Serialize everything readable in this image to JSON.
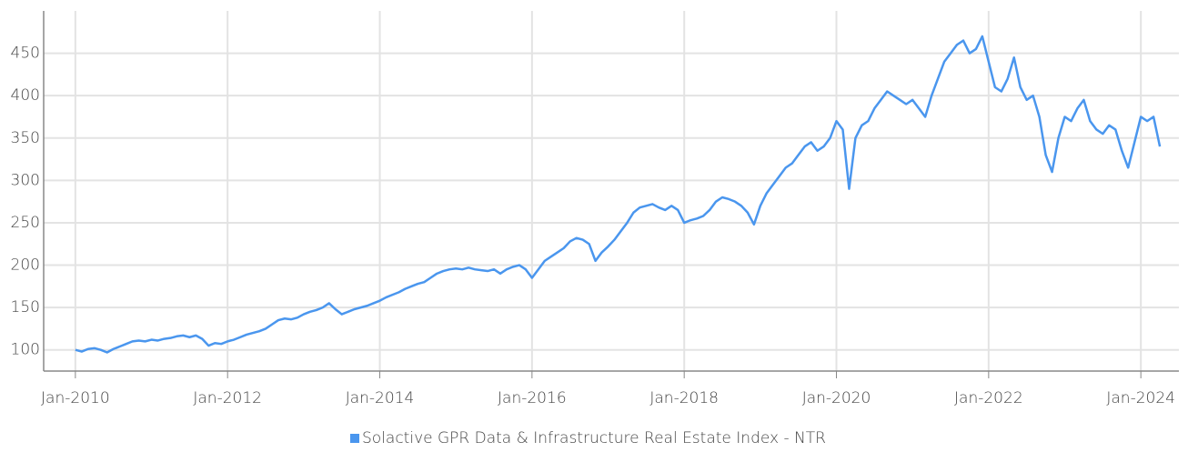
{
  "chart_data": {
    "type": "line",
    "x": [
      "2010-01",
      "2010-02",
      "2010-03",
      "2010-04",
      "2010-05",
      "2010-06",
      "2010-07",
      "2010-08",
      "2010-09",
      "2010-10",
      "2010-11",
      "2010-12",
      "2011-01",
      "2011-02",
      "2011-03",
      "2011-04",
      "2011-05",
      "2011-06",
      "2011-07",
      "2011-08",
      "2011-09",
      "2011-10",
      "2011-11",
      "2011-12",
      "2012-01",
      "2012-02",
      "2012-03",
      "2012-04",
      "2012-05",
      "2012-06",
      "2012-07",
      "2012-08",
      "2012-09",
      "2012-10",
      "2012-11",
      "2012-12",
      "2013-01",
      "2013-02",
      "2013-03",
      "2013-04",
      "2013-05",
      "2013-06",
      "2013-07",
      "2013-08",
      "2013-09",
      "2013-10",
      "2013-11",
      "2013-12",
      "2014-01",
      "2014-02",
      "2014-03",
      "2014-04",
      "2014-05",
      "2014-06",
      "2014-07",
      "2014-08",
      "2014-09",
      "2014-10",
      "2014-11",
      "2014-12",
      "2015-01",
      "2015-02",
      "2015-03",
      "2015-04",
      "2015-05",
      "2015-06",
      "2015-07",
      "2015-08",
      "2015-09",
      "2015-10",
      "2015-11",
      "2015-12",
      "2016-01",
      "2016-02",
      "2016-03",
      "2016-04",
      "2016-05",
      "2016-06",
      "2016-07",
      "2016-08",
      "2016-09",
      "2016-10",
      "2016-11",
      "2016-12",
      "2017-01",
      "2017-02",
      "2017-03",
      "2017-04",
      "2017-05",
      "2017-06",
      "2017-07",
      "2017-08",
      "2017-09",
      "2017-10",
      "2017-11",
      "2017-12",
      "2018-01",
      "2018-02",
      "2018-03",
      "2018-04",
      "2018-05",
      "2018-06",
      "2018-07",
      "2018-08",
      "2018-09",
      "2018-10",
      "2018-11",
      "2018-12",
      "2019-01",
      "2019-02",
      "2019-03",
      "2019-04",
      "2019-05",
      "2019-06",
      "2019-07",
      "2019-08",
      "2019-09",
      "2019-10",
      "2019-11",
      "2019-12",
      "2020-01",
      "2020-02",
      "2020-03",
      "2020-04",
      "2020-05",
      "2020-06",
      "2020-07",
      "2020-08",
      "2020-09",
      "2020-10",
      "2020-11",
      "2020-12",
      "2021-01",
      "2021-02",
      "2021-03",
      "2021-04",
      "2021-05",
      "2021-06",
      "2021-07",
      "2021-08",
      "2021-09",
      "2021-10",
      "2021-11",
      "2021-12",
      "2022-01",
      "2022-02",
      "2022-03",
      "2022-04",
      "2022-05",
      "2022-06",
      "2022-07",
      "2022-08",
      "2022-09",
      "2022-10",
      "2022-11",
      "2022-12",
      "2023-01",
      "2023-02",
      "2023-03",
      "2023-04",
      "2023-05",
      "2023-06",
      "2023-07",
      "2023-08",
      "2023-09",
      "2023-10",
      "2023-11",
      "2023-12",
      "2024-01",
      "2024-02",
      "2024-03",
      "2024-04"
    ],
    "series": [
      {
        "name": "Solactive GPR Data & Infrastructure Real Estate Index - NTR",
        "color": "#4a96ee",
        "values": [
          100,
          98,
          101,
          102,
          100,
          97,
          101,
          104,
          107,
          110,
          111,
          110,
          112,
          111,
          113,
          114,
          116,
          117,
          115,
          117,
          113,
          105,
          108,
          107,
          110,
          112,
          115,
          118,
          120,
          122,
          125,
          130,
          135,
          137,
          136,
          138,
          142,
          145,
          147,
          150,
          155,
          148,
          142,
          145,
          148,
          150,
          152,
          155,
          158,
          162,
          165,
          168,
          172,
          175,
          178,
          180,
          185,
          190,
          193,
          195,
          196,
          195,
          197,
          195,
          194,
          193,
          195,
          190,
          195,
          198,
          200,
          195,
          185,
          195,
          205,
          210,
          215,
          220,
          228,
          232,
          230,
          225,
          205,
          215,
          222,
          230,
          240,
          250,
          262,
          268,
          270,
          272,
          268,
          265,
          270,
          265,
          250,
          253,
          255,
          258,
          265,
          275,
          280,
          278,
          275,
          270,
          262,
          248,
          270,
          285,
          295,
          305,
          315,
          320,
          330,
          340,
          345,
          335,
          340,
          350,
          370,
          360,
          290,
          350,
          365,
          370,
          385,
          395,
          405,
          400,
          395,
          390,
          395,
          385,
          375,
          400,
          420,
          440,
          450,
          460,
          465,
          450,
          455,
          470,
          440,
          410,
          405,
          420,
          445,
          410,
          395,
          400,
          375,
          330,
          310,
          350,
          375,
          370,
          385,
          395,
          370,
          360,
          355,
          365,
          360,
          335,
          315,
          345,
          375,
          370,
          375,
          340
        ]
      }
    ],
    "xlim": [
      "2009-08",
      "2024-07"
    ],
    "xticks": [
      {
        "value": "2010-01",
        "label": "Jan-2010"
      },
      {
        "value": "2012-01",
        "label": "Jan-2012"
      },
      {
        "value": "2014-01",
        "label": "Jan-2014"
      },
      {
        "value": "2016-01",
        "label": "Jan-2016"
      },
      {
        "value": "2018-01",
        "label": "Jan-2018"
      },
      {
        "value": "2020-01",
        "label": "Jan-2020"
      },
      {
        "value": "2022-01",
        "label": "Jan-2022"
      },
      {
        "value": "2024-01",
        "label": "Jan-2024"
      }
    ],
    "ylim": [
      75,
      500
    ],
    "yticks": [
      100,
      150,
      200,
      250,
      300,
      350,
      400,
      450
    ],
    "grid": true,
    "legend": "bottom"
  }
}
